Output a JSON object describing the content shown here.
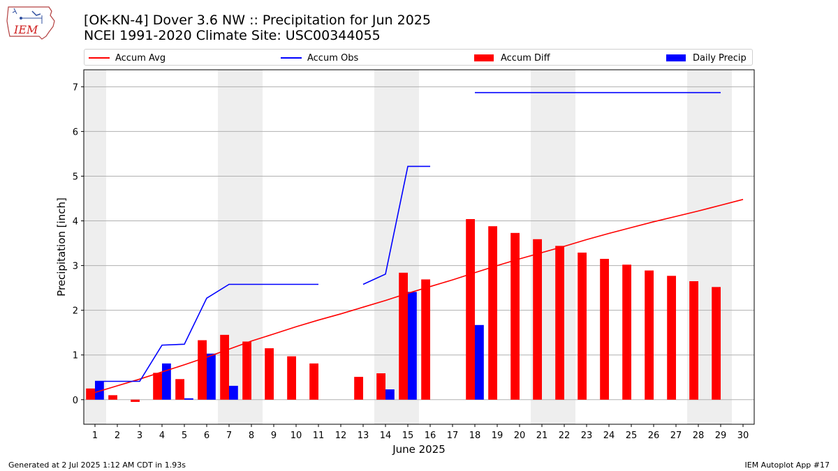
{
  "header": {
    "logo_text": "IEM",
    "title_line1": "[OK-KN-4] Dover 3.6 NW :: Precipitation for Jun 2025",
    "title_line2": "NCEI 1991-2020 Climate Site: USC00344055"
  },
  "footer": {
    "left": "Generated at 2 Jul 2025 1:12 AM CDT in 1.93s",
    "right": "IEM Autoplot App #17"
  },
  "colors": {
    "accum_avg": "#ff0000",
    "accum_obs": "#0000ff",
    "accum_diff": "#ff0000",
    "daily_precip": "#0000ff",
    "weekend_band": "#eeeeee",
    "grid": "#b0b0b0"
  },
  "chart_data": {
    "type": "bar",
    "title": "[OK-KN-4] Dover 3.6 NW :: Precipitation for Jun 2025",
    "subtitle": "NCEI 1991-2020 Climate Site: USC00344055",
    "xlabel": "June 2025",
    "ylabel": "Precipitation [inch]",
    "xlim": [
      0.5,
      30.5
    ],
    "ylim": [
      -0.55,
      7.38
    ],
    "x_ticks": [
      1,
      2,
      3,
      4,
      5,
      6,
      7,
      8,
      9,
      10,
      11,
      12,
      13,
      14,
      15,
      16,
      17,
      18,
      19,
      20,
      21,
      22,
      23,
      24,
      25,
      26,
      27,
      28,
      29,
      30
    ],
    "y_ticks": [
      0,
      1,
      2,
      3,
      4,
      5,
      6,
      7
    ],
    "grid": "y-major",
    "legend_position": "top",
    "legend": [
      "Accum Avg",
      "Accum Obs",
      "Accum Diff",
      "Daily Precip"
    ],
    "weekend_days": [
      1,
      7,
      8,
      14,
      15,
      21,
      22,
      28,
      29
    ],
    "series": [
      {
        "name": "Accum Avg",
        "kind": "line",
        "x": [
          1,
          2,
          3,
          4,
          5,
          6,
          7,
          8,
          9,
          10,
          11,
          12,
          13,
          14,
          15,
          16,
          17,
          18,
          19,
          20,
          21,
          22,
          23,
          24,
          25,
          26,
          27,
          28,
          29,
          30
        ],
        "values": [
          0.16,
          0.31,
          0.46,
          0.62,
          0.78,
          0.95,
          1.13,
          1.31,
          1.47,
          1.63,
          1.78,
          1.92,
          2.07,
          2.22,
          2.38,
          2.53,
          2.68,
          2.84,
          3.0,
          3.15,
          3.29,
          3.43,
          3.58,
          3.72,
          3.85,
          3.98,
          4.1,
          4.22,
          4.35,
          4.48
        ]
      },
      {
        "name": "Accum Obs",
        "kind": "line",
        "x": [
          1,
          2,
          3,
          4,
          5,
          6,
          7,
          8,
          9,
          10,
          11,
          12,
          13,
          14,
          15,
          16,
          17,
          18,
          19,
          20,
          21,
          22,
          23,
          24,
          25,
          26,
          27,
          28,
          29
        ],
        "values": [
          0.41,
          0.41,
          0.41,
          1.22,
          1.24,
          2.27,
          2.58,
          2.58,
          2.58,
          2.58,
          2.58,
          null,
          2.58,
          2.81,
          5.22,
          5.22,
          null,
          6.87,
          6.87,
          6.87,
          6.87,
          6.87,
          6.87,
          6.87,
          6.87,
          6.87,
          6.87,
          6.87,
          6.87
        ]
      },
      {
        "name": "Accum Diff",
        "kind": "bar",
        "x": [
          1,
          2,
          3,
          4,
          5,
          6,
          7,
          8,
          9,
          10,
          11,
          12,
          13,
          14,
          15,
          16,
          17,
          18,
          19,
          20,
          21,
          22,
          23,
          24,
          25,
          26,
          27,
          28,
          29
        ],
        "values": [
          0.25,
          0.1,
          -0.05,
          0.6,
          0.46,
          1.33,
          1.45,
          1.3,
          1.15,
          0.97,
          0.81,
          null,
          0.51,
          0.59,
          2.84,
          2.69,
          null,
          4.04,
          3.88,
          3.73,
          3.59,
          3.44,
          3.29,
          3.15,
          3.02,
          2.89,
          2.77,
          2.65,
          2.52
        ]
      },
      {
        "name": "Daily Precip",
        "kind": "bar",
        "x": [
          1,
          2,
          3,
          4,
          5,
          6,
          7,
          8,
          9,
          10,
          11,
          12,
          13,
          14,
          15,
          16,
          17,
          18,
          19,
          20,
          21,
          22,
          23,
          24,
          25,
          26,
          27,
          28,
          29
        ],
        "values": [
          0.41,
          0,
          0,
          0.81,
          0.03,
          1.03,
          0.31,
          0,
          0,
          0,
          0,
          null,
          0,
          0.23,
          2.41,
          0,
          null,
          1.67,
          0,
          0,
          0,
          0,
          0,
          0,
          0,
          0,
          0,
          0,
          0
        ]
      }
    ]
  }
}
